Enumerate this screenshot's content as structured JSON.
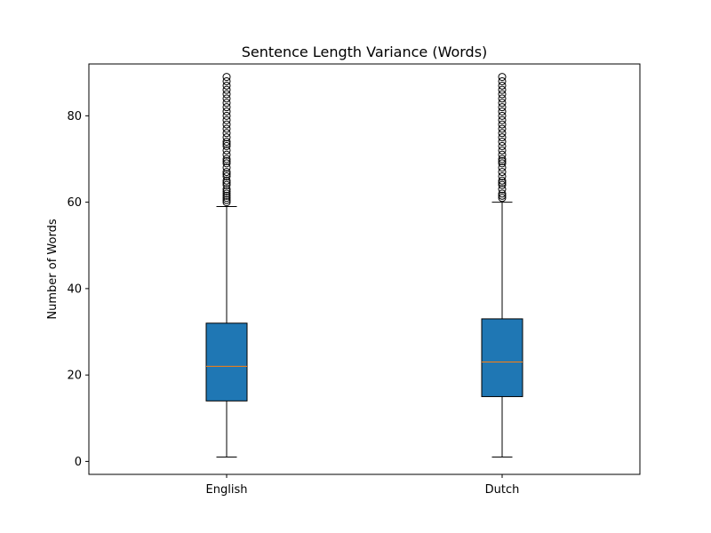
{
  "chart_data": {
    "type": "boxplot",
    "title": "Sentence Length Variance (Words)",
    "xlabel": "",
    "ylabel": "Number of Words",
    "categories": [
      "English",
      "Dutch"
    ],
    "ylim": [
      -3,
      92
    ],
    "yticks": [
      0,
      20,
      40,
      60,
      80
    ],
    "grid": false,
    "boxes": [
      {
        "name": "English",
        "whisker_low": 1,
        "q1": 14,
        "median": 22,
        "q3": 32,
        "whisker_high": 59,
        "outliers": [
          60,
          60.5,
          61,
          61.5,
          62,
          62.5,
          63,
          64,
          64.5,
          65,
          66,
          66.5,
          67,
          68,
          69,
          69.5,
          70,
          71,
          72,
          73,
          73.5,
          74,
          75,
          76,
          77,
          78,
          79,
          80,
          81,
          82,
          83,
          84,
          85,
          86,
          87,
          88,
          89
        ]
      },
      {
        "name": "Dutch",
        "whisker_low": 1,
        "q1": 15,
        "median": 23,
        "q3": 33,
        "whisker_high": 60,
        "outliers": [
          61,
          61.5,
          62,
          63,
          64,
          64.5,
          65,
          66,
          67,
          68,
          69,
          69.5,
          70,
          71,
          72,
          73,
          74,
          75,
          76,
          77,
          78,
          79,
          80,
          81,
          82,
          83,
          84,
          85,
          86,
          87,
          88,
          89
        ]
      }
    ],
    "colors": {
      "box_fill": "#1f77b4",
      "median": "#ff7f0e",
      "line": "#000000"
    }
  }
}
